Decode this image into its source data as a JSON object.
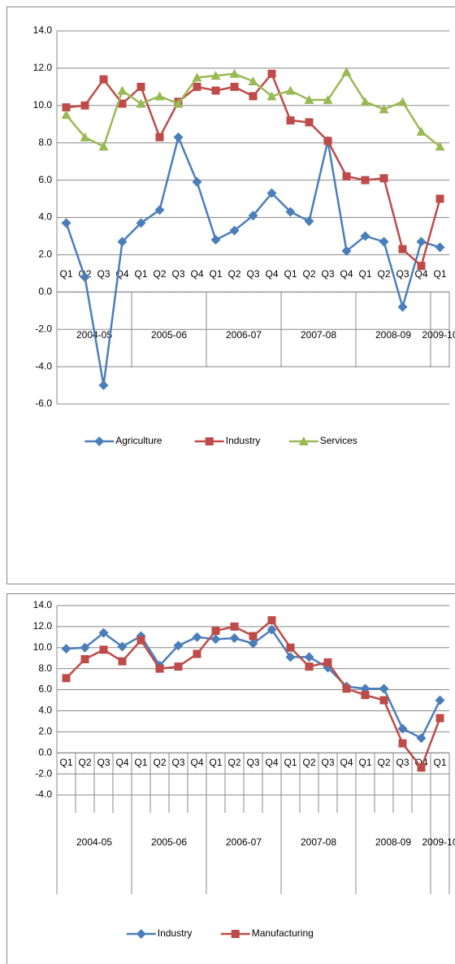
{
  "chart_data": [
    {
      "type": "line",
      "categories": [
        "Q1",
        "Q2",
        "Q3",
        "Q4",
        "Q1",
        "Q2",
        "Q3",
        "Q4",
        "Q1",
        "Q2",
        "Q3",
        "Q4",
        "Q1",
        "Q2",
        "Q3",
        "Q4",
        "Q1",
        "Q2",
        "Q3",
        "Q4",
        "Q1"
      ],
      "groups": [
        "2004-05",
        "2005-06",
        "2006-07",
        "2007-08",
        "2008-09",
        "2009-10"
      ],
      "series": [
        {
          "name": "Agriculture",
          "color": "#4a7ebb",
          "marker": "diamond",
          "values": [
            3.7,
            0.8,
            -5.0,
            2.7,
            3.7,
            4.4,
            8.3,
            5.9,
            2.8,
            3.3,
            4.1,
            5.3,
            4.3,
            3.8,
            8.1,
            2.2,
            3.0,
            2.7,
            -0.8,
            2.7,
            2.4
          ]
        },
        {
          "name": "Industry",
          "color": "#be4b48",
          "marker": "square",
          "values": [
            9.9,
            10.0,
            11.4,
            10.1,
            11.0,
            8.3,
            10.2,
            11.0,
            10.8,
            11.0,
            10.5,
            11.7,
            9.2,
            9.1,
            8.1,
            6.2,
            6.0,
            6.1,
            2.3,
            1.4,
            5.0
          ]
        },
        {
          "name": "Services",
          "color": "#98b954",
          "marker": "triangle",
          "values": [
            9.5,
            8.3,
            7.8,
            10.8,
            10.1,
            10.5,
            10.1,
            11.5,
            11.6,
            11.7,
            11.3,
            10.5,
            10.8,
            10.3,
            10.3,
            11.8,
            10.2,
            9.8,
            10.2,
            8.6,
            7.8
          ]
        }
      ],
      "ylim": [
        -6,
        14
      ],
      "yticks": [
        {
          "value": -6,
          "label": "-6.0"
        },
        {
          "value": -4,
          "label": "-4.0"
        },
        {
          "value": -2,
          "label": "-2.0"
        },
        {
          "value": 0,
          "label": "0.0"
        },
        {
          "value": 2,
          "label": "2.0"
        },
        {
          "value": 4,
          "label": "4.0"
        },
        {
          "value": 6,
          "label": "6.0"
        },
        {
          "value": 8,
          "label": "8.0"
        },
        {
          "value": 10,
          "label": "10.0"
        },
        {
          "value": 12,
          "label": "12.0"
        },
        {
          "value": 14,
          "label": "14.0"
        }
      ],
      "grid": true,
      "legend": "bottom"
    },
    {
      "type": "line",
      "categories": [
        "Q1",
        "Q2",
        "Q3",
        "Q4",
        "Q1",
        "Q2",
        "Q3",
        "Q4",
        "Q1",
        "Q2",
        "Q3",
        "Q4",
        "Q1",
        "Q2",
        "Q3",
        "Q4",
        "Q1",
        "Q2",
        "Q3",
        "Q4",
        "Q1"
      ],
      "groups": [
        "2004-05",
        "2005-06",
        "2006-07",
        "2007-08",
        "2008-09",
        "2009-10"
      ],
      "series": [
        {
          "name": "Industry",
          "color": "#4a7ebb",
          "marker": "diamond",
          "values": [
            9.9,
            10.0,
            11.4,
            10.1,
            11.1,
            8.3,
            10.2,
            11.0,
            10.8,
            10.9,
            10.4,
            11.7,
            9.1,
            9.1,
            8.1,
            6.3,
            6.1,
            6.1,
            2.3,
            1.4,
            5.0
          ]
        },
        {
          "name": "Manufacturing",
          "color": "#be4b48",
          "marker": "square",
          "values": [
            7.1,
            8.9,
            9.8,
            8.7,
            10.7,
            8.0,
            8.2,
            9.4,
            11.6,
            12.0,
            11.1,
            12.6,
            10.0,
            8.2,
            8.6,
            6.1,
            5.5,
            5.0,
            0.9,
            -1.4,
            3.3
          ]
        }
      ],
      "ylim": [
        -4,
        14
      ],
      "yticks": [
        {
          "value": -4,
          "label": "-4.0"
        },
        {
          "value": -2,
          "label": "-2.0"
        },
        {
          "value": 0,
          "label": "0.0"
        },
        {
          "value": 2,
          "label": "2.0"
        },
        {
          "value": 4,
          "label": "4.0"
        },
        {
          "value": 6,
          "label": "6.0"
        },
        {
          "value": 8,
          "label": "8.0"
        },
        {
          "value": 10,
          "label": "10.0"
        },
        {
          "value": 12,
          "label": "12.0"
        },
        {
          "value": 14,
          "label": "14.0"
        }
      ],
      "grid": true,
      "legend": "bottom"
    }
  ]
}
